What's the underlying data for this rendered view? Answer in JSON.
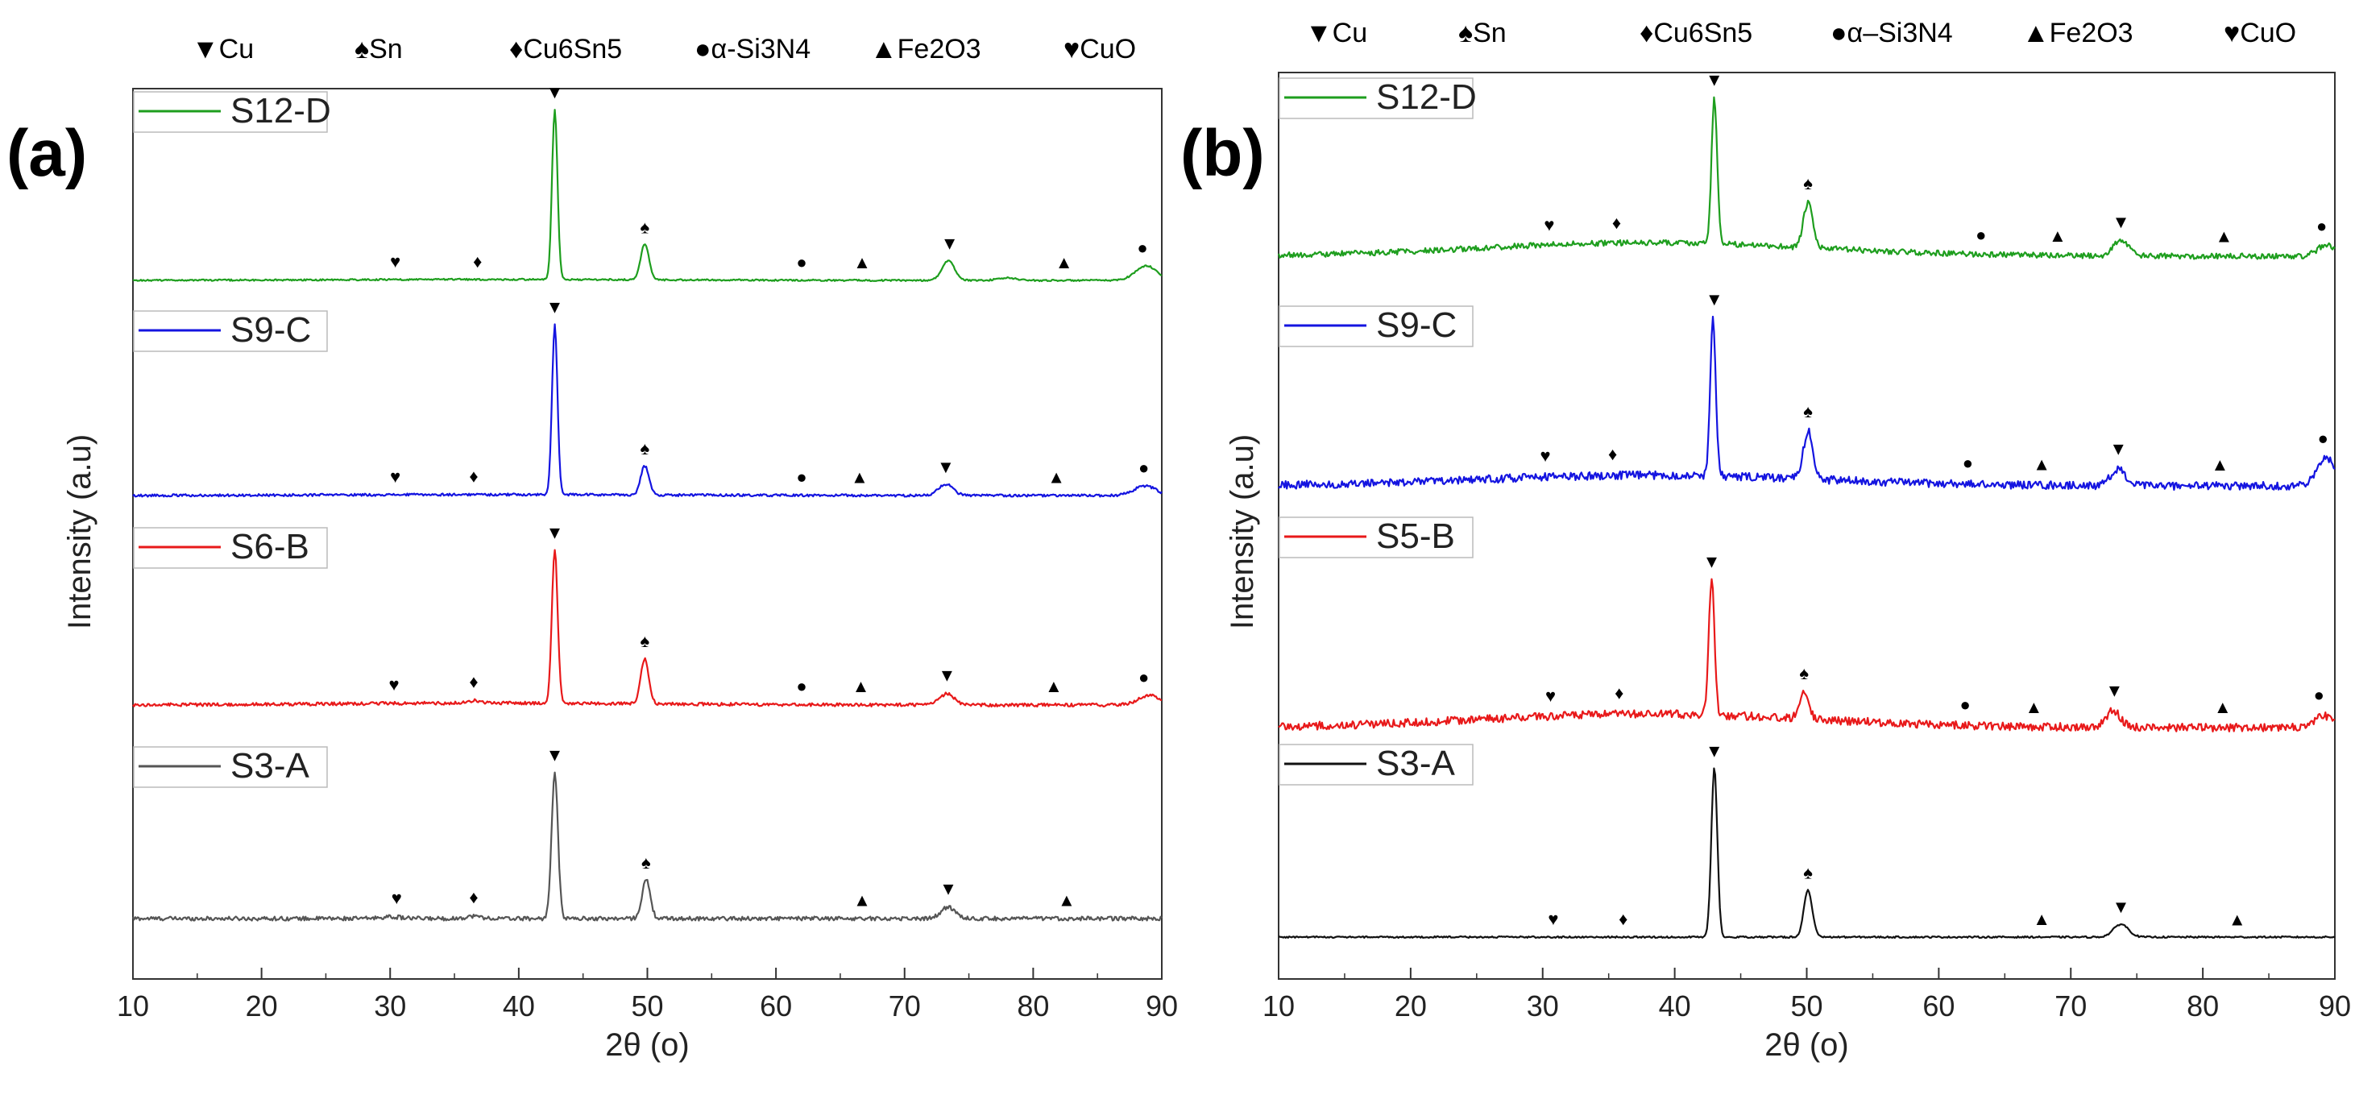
{
  "chart_data": [
    {
      "type": "line",
      "panel": "(a)",
      "xlabel": "2θ (ο)",
      "ylabel": "Intensity (a.u)",
      "xlim": [
        10,
        90
      ],
      "xticks": [
        "10",
        "20",
        "30",
        "40",
        "50",
        "60",
        "70",
        "80",
        "90"
      ],
      "phase_legend": [
        "Cu",
        "Sn",
        "Cu6Sn5",
        "α-Si3N4",
        "Fe2O3",
        "CuO"
      ],
      "series": [
        {
          "name": "S3-A",
          "color": "#555555",
          "noise": 2.5,
          "base": 0,
          "ramp": 0,
          "peaks": [
            [
              42.8,
              180,
              0.35
            ],
            [
              49.9,
              48,
              0.45
            ],
            [
              73.4,
              14,
              0.8
            ],
            [
              36.5,
              3,
              0.8
            ],
            [
              30,
              2,
              1.2
            ]
          ],
          "markers": [
            [
              "CuO",
              30.5
            ],
            [
              "Cu6Sn5",
              36.5
            ],
            [
              "Cu",
              42.8
            ],
            [
              "Sn",
              49.9
            ],
            [
              "Fe2O3",
              66.7
            ],
            [
              "Cu",
              73.4
            ],
            [
              "Fe2O3",
              82.6
            ]
          ]
        },
        {
          "name": "S6-B",
          "color": "#e8191a",
          "noise": 2.0,
          "base": 0,
          "ramp": 4,
          "peaks": [
            [
              42.8,
              190,
              0.32
            ],
            [
              49.8,
              55,
              0.45
            ],
            [
              73.3,
              14,
              0.8
            ],
            [
              89,
              12,
              1.2
            ],
            [
              36.5,
              3,
              0.8
            ]
          ],
          "markers": [
            [
              "CuO",
              30.3
            ],
            [
              "Cu6Sn5",
              36.5
            ],
            [
              "Cu",
              42.8
            ],
            [
              "Sn",
              49.8
            ],
            [
              "α-Si3N4",
              62.0
            ],
            [
              "Fe2O3",
              66.6
            ],
            [
              "Cu",
              73.3
            ],
            [
              "Fe2O3",
              81.6
            ],
            [
              "α-Si3N4",
              88.6
            ]
          ]
        },
        {
          "name": "S9-C",
          "color": "#1414e0",
          "noise": 1.5,
          "base": 0,
          "ramp": 2,
          "peaks": [
            [
              42.8,
              210,
              0.3
            ],
            [
              49.8,
              36,
              0.45
            ],
            [
              73.2,
              14,
              0.8
            ],
            [
              88.7,
              12,
              1.2
            ]
          ],
          "markers": [
            [
              "CuO",
              30.4
            ],
            [
              "Cu6Sn5",
              36.5
            ],
            [
              "Cu",
              42.8
            ],
            [
              "Sn",
              49.8
            ],
            [
              "α-Si3N4",
              62.0
            ],
            [
              "Fe2O3",
              66.5
            ],
            [
              "Cu",
              73.2
            ],
            [
              "Fe2O3",
              81.8
            ],
            [
              "α-Si3N4",
              88.6
            ]
          ]
        },
        {
          "name": "S12-D",
          "color": "#1e9e1e",
          "noise": 1.0,
          "base": 0,
          "ramp": 2,
          "peaks": [
            [
              42.8,
              210,
              0.3
            ],
            [
              49.8,
              45,
              0.45
            ],
            [
              73.4,
              24,
              0.7
            ],
            [
              88.8,
              18,
              1.2
            ],
            [
              78,
              3,
              1.0
            ]
          ],
          "markers": [
            [
              "CuO",
              30.4
            ],
            [
              "Cu6Sn5",
              36.8
            ],
            [
              "Cu",
              42.8
            ],
            [
              "Sn",
              49.8
            ],
            [
              "α-Si3N4",
              62.0
            ],
            [
              "Fe2O3",
              66.7
            ],
            [
              "Cu",
              73.5
            ],
            [
              "Fe2O3",
              82.4
            ],
            [
              "α-Si3N4",
              88.5
            ]
          ]
        }
      ]
    },
    {
      "type": "line",
      "panel": "(b)",
      "xlabel": "2θ (ο)",
      "ylabel": "Intensity (a.u)",
      "xlim": [
        10,
        90
      ],
      "xticks": [
        "10",
        "20",
        "30",
        "40",
        "50",
        "60",
        "70",
        "80",
        "90"
      ],
      "phase_legend": [
        "Cu",
        "Sn",
        "Cu6Sn5",
        "α–Si3N4",
        "Fe2O3",
        "CuO"
      ],
      "series": [
        {
          "name": "S3-A",
          "color": "#111111",
          "noise": 1.0,
          "base": 0,
          "ramp": 0,
          "peaks": [
            [
              43.0,
              210,
              0.32
            ],
            [
              50.1,
              58,
              0.45
            ],
            [
              73.8,
              16,
              0.8
            ]
          ],
          "markers": [
            [
              "CuO",
              30.8
            ],
            [
              "Cu6Sn5",
              36.1
            ],
            [
              "Cu",
              43.0
            ],
            [
              "Sn",
              50.1
            ],
            [
              "Fe2O3",
              67.8
            ],
            [
              "Cu",
              73.8
            ],
            [
              "Fe2O3",
              82.6
            ]
          ]
        },
        {
          "name": "S5-B",
          "color": "#e8191a",
          "noise": 5.0,
          "base": 0,
          "ramp": 28,
          "peaks": [
            [
              42.8,
              170,
              0.3
            ],
            [
              49.8,
              35,
              0.5
            ],
            [
              73.2,
              20,
              0.8
            ],
            [
              89.2,
              14,
              1.0
            ]
          ],
          "markers": [
            [
              "CuO",
              30.6
            ],
            [
              "Cu6Sn5",
              35.8
            ],
            [
              "Cu",
              42.8
            ],
            [
              "Sn",
              49.8
            ],
            [
              "α-Si3N4",
              62.0
            ],
            [
              "Fe2O3",
              67.2
            ],
            [
              "Cu",
              73.3
            ],
            [
              "Fe2O3",
              81.5
            ],
            [
              "α-Si3N4",
              88.8
            ]
          ]
        },
        {
          "name": "S9-C",
          "color": "#1414e0",
          "noise": 5.0,
          "base": 0,
          "ramp": 22,
          "peaks": [
            [
              42.9,
              195,
              0.3
            ],
            [
              50.1,
              60,
              0.5
            ],
            [
              73.6,
              20,
              0.8
            ],
            [
              89.4,
              35,
              1.0
            ]
          ],
          "markers": [
            [
              "CuO",
              30.2
            ],
            [
              "Cu6Sn5",
              35.3
            ],
            [
              "Cu",
              43.0
            ],
            [
              "Sn",
              50.1
            ],
            [
              "α-Si3N4",
              62.2
            ],
            [
              "Fe2O3",
              67.8
            ],
            [
              "Cu",
              73.6
            ],
            [
              "Fe2O3",
              81.3
            ],
            [
              "α-Si3N4",
              89.1
            ]
          ]
        },
        {
          "name": "S12-D",
          "color": "#1e9e1e",
          "noise": 3.5,
          "base": 0,
          "ramp": 28,
          "peaks": [
            [
              43.0,
              180,
              0.3
            ],
            [
              50.1,
              55,
              0.5
            ],
            [
              73.8,
              20,
              0.8
            ],
            [
              89.4,
              14,
              1.0
            ]
          ],
          "markers": [
            [
              "CuO",
              30.5
            ],
            [
              "Cu6Sn5",
              35.6
            ],
            [
              "Cu",
              43.0
            ],
            [
              "Sn",
              50.1
            ],
            [
              "α-Si3N4",
              63.2
            ],
            [
              "Fe2O3",
              69.0
            ],
            [
              "Cu",
              73.8
            ],
            [
              "Fe2O3",
              81.6
            ],
            [
              "α-Si3N4",
              89.0
            ]
          ]
        }
      ]
    }
  ]
}
